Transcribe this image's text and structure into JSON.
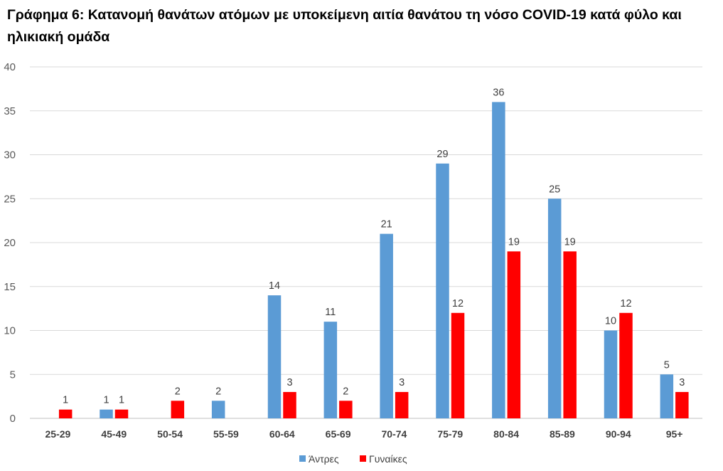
{
  "chart_data": {
    "type": "bar",
    "title": "Γράφημα 6: Κατανομή θανάτων ατόμων με υποκείμενη αιτία θανάτου τη νόσο COVID-19 κατά φύλο και ηλικιακή ομάδα",
    "xlabel": "",
    "ylabel": "",
    "ylim": [
      0,
      40
    ],
    "yticks": [
      0,
      5,
      10,
      15,
      20,
      25,
      30,
      35,
      40
    ],
    "grid": true,
    "legend_position": "bottom",
    "categories": [
      "25-29",
      "45-49",
      "50-54",
      "55-59",
      "60-64",
      "65-69",
      "70-74",
      "75-79",
      "80-84",
      "85-89",
      "90-94",
      "95+"
    ],
    "series": [
      {
        "name": "Άντρες",
        "color": "#5B9BD5",
        "values": [
          null,
          1,
          null,
          2,
          14,
          11,
          21,
          29,
          36,
          25,
          10,
          5
        ]
      },
      {
        "name": "Γυναίκες",
        "color": "#FF0000",
        "values": [
          1,
          1,
          2,
          null,
          3,
          2,
          3,
          12,
          19,
          19,
          12,
          3
        ]
      }
    ]
  }
}
